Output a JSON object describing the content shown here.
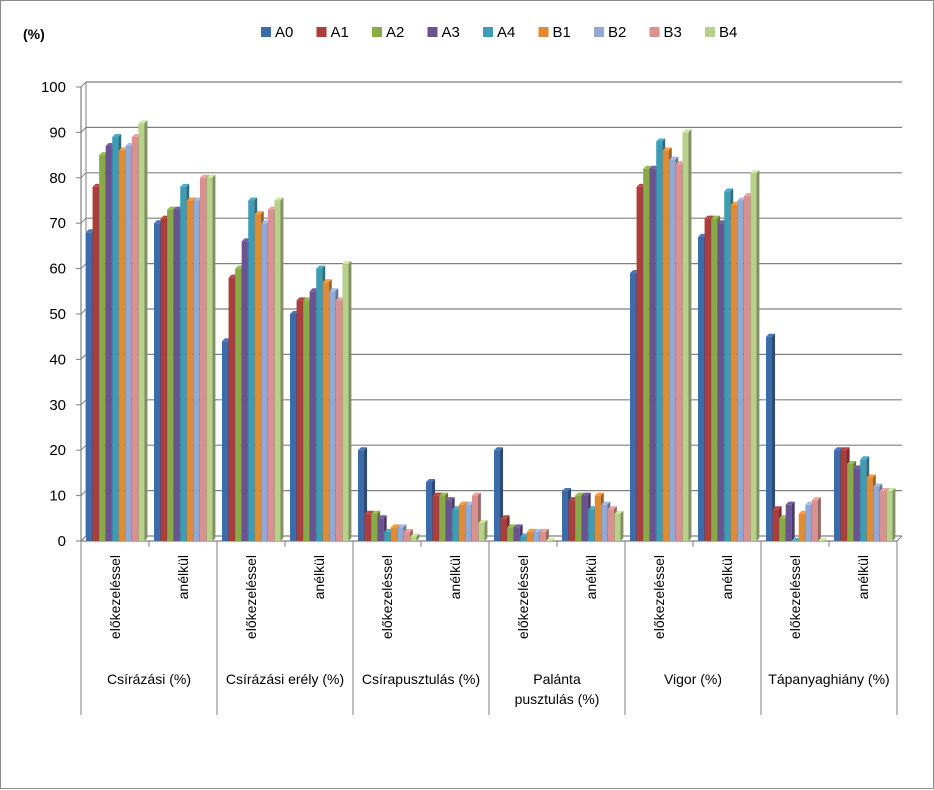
{
  "chart_data": {
    "type": "bar",
    "y_unit_label": "(%)",
    "ylim": [
      0,
      100
    ],
    "yticks": [
      0,
      10,
      20,
      30,
      40,
      50,
      60,
      70,
      80,
      90,
      100
    ],
    "grid": true,
    "legend_position": "top",
    "series_names": [
      "A0",
      "A1",
      "A2",
      "A3",
      "A4",
      "B1",
      "B2",
      "B3",
      "B4"
    ],
    "series_colors": [
      "#3d6aa8",
      "#ab3e3b",
      "#88aa47",
      "#6b5291",
      "#3f9cb5",
      "#e08a34",
      "#92a9d4",
      "#d8918f",
      "#b8d08c"
    ],
    "groups": [
      {
        "label": "Csírázási (%)",
        "subcategories": [
          {
            "label": "előkezeléssel",
            "values": [
              68,
              78,
              85,
              87,
              89,
              86,
              87,
              89,
              92
            ]
          },
          {
            "label": "anélkül",
            "values": [
              70,
              71,
              73,
              73,
              78,
              75,
              75,
              80,
              80
            ]
          }
        ]
      },
      {
        "label": "Csírázási erély (%)",
        "subcategories": [
          {
            "label": "előkezeléssel",
            "values": [
              44,
              58,
              60,
              66,
              75,
              72,
              70,
              73,
              75
            ]
          },
          {
            "label": "anélkül",
            "values": [
              50,
              53,
              53,
              55,
              60,
              57,
              55,
              53,
              61
            ]
          }
        ]
      },
      {
        "label": "Csírapusztulás (%)",
        "subcategories": [
          {
            "label": "előkezeléssel",
            "values": [
              20,
              6,
              6,
              5,
              2,
              3,
              3,
              2,
              1
            ]
          },
          {
            "label": "anélkül",
            "values": [
              13,
              10,
              10,
              9,
              7,
              8,
              8,
              10,
              4
            ]
          }
        ]
      },
      {
        "label": "Palánta pusztulás (%)",
        "subcategories": [
          {
            "label": "előkezeléssel",
            "values": [
              20,
              5,
              3,
              3,
              1,
              2,
              2,
              2,
              0
            ]
          },
          {
            "label": "anélkül",
            "values": [
              11,
              9,
              10,
              10,
              7,
              10,
              8,
              7,
              6
            ]
          }
        ]
      },
      {
        "label": "Vigor (%)",
        "subcategories": [
          {
            "label": "előkezeléssel",
            "values": [
              59,
              78,
              82,
              82,
              88,
              86,
              84,
              83,
              90
            ]
          },
          {
            "label": "anélkül",
            "values": [
              67,
              71,
              71,
              70,
              77,
              74,
              75,
              76,
              81
            ]
          }
        ]
      },
      {
        "label": "Tápanyaghiány (%)",
        "subcategories": [
          {
            "label": "előkezeléssel",
            "values": [
              45,
              7,
              5,
              8,
              0,
              6,
              8,
              9,
              0
            ]
          },
          {
            "label": "anélkül",
            "values": [
              20,
              20,
              17,
              16,
              18,
              14,
              12,
              11,
              11
            ]
          }
        ]
      }
    ]
  }
}
